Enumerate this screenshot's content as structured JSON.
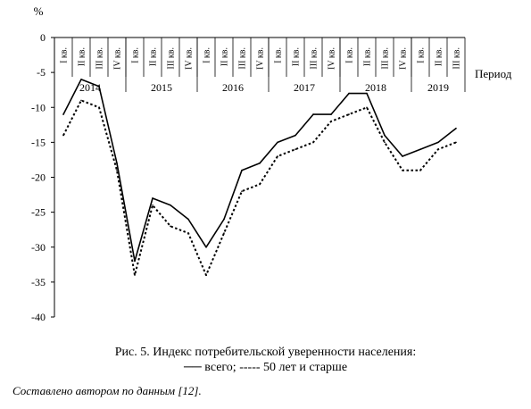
{
  "chart_data": {
    "type": "line",
    "y_unit": "%",
    "x_title": "Период",
    "ylim": [
      -40,
      0
    ],
    "y_ticks": [
      0,
      -5,
      -10,
      -15,
      -20,
      -25,
      -30,
      -35,
      -40
    ],
    "grid": false,
    "years": [
      {
        "label": "2014",
        "quarters": [
          "I кв.",
          "II кв.",
          "III кв.",
          "IV кв."
        ]
      },
      {
        "label": "2015",
        "quarters": [
          "I кв.",
          "II кв.",
          "III кв.",
          "IV кв."
        ]
      },
      {
        "label": "2016",
        "quarters": [
          "I кв.",
          "II кв.",
          "III кв.",
          "IV кв."
        ]
      },
      {
        "label": "2017",
        "quarters": [
          "I кв.",
          "II кв.",
          "III кв.",
          "IV кв."
        ]
      },
      {
        "label": "2018",
        "quarters": [
          "I кв.",
          "II кв.",
          "III кв.",
          "IV кв."
        ]
      },
      {
        "label": "2019",
        "quarters": [
          "I кв.",
          "II кв.",
          "III кв."
        ]
      }
    ],
    "series": [
      {
        "name": "всего",
        "style": "solid",
        "values": [
          -11,
          -6,
          -7,
          -18,
          -32,
          -23,
          -24,
          -26,
          -30,
          -26,
          -19,
          -18,
          -15,
          -14,
          -11,
          -11,
          -8,
          -8,
          -14,
          -17,
          -16,
          -15,
          -13
        ]
      },
      {
        "name": "50 лет и старше",
        "style": "dashed",
        "values": [
          -14,
          -9,
          -10,
          -19,
          -34,
          -24,
          -27,
          -28,
          -34,
          -28,
          -22,
          -21,
          -17,
          -16,
          -15,
          -12,
          -11,
          -10,
          -15,
          -19,
          -19,
          -16,
          -15
        ]
      }
    ]
  },
  "caption": {
    "line1": "Рис. 5. Индекс потребительской уверенности населения:",
    "line2": "── всего; ----- 50 лет и старше"
  },
  "note": "Составлено автором по данным [12]."
}
